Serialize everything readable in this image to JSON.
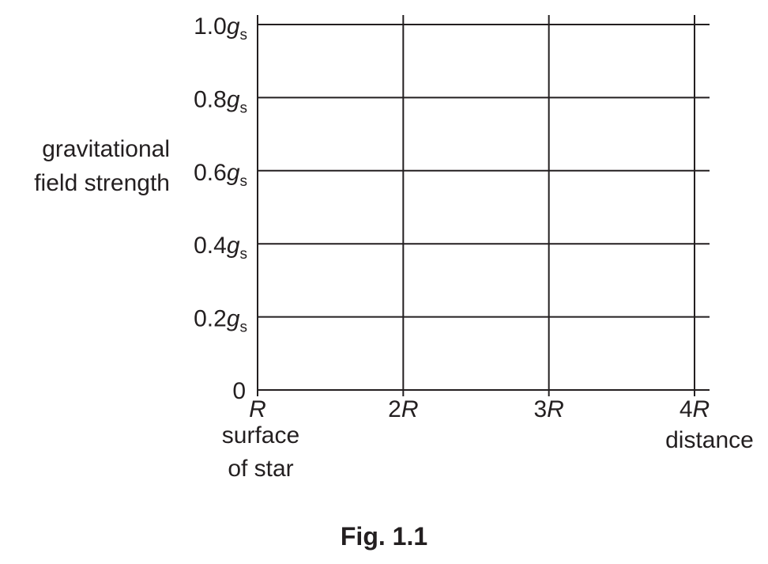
{
  "chart_data": {
    "type": "line",
    "title": "",
    "ylabel": [
      "gravitational",
      "field strength"
    ],
    "xlabel": "distance",
    "x_categories": [
      "R",
      "2R",
      "3R",
      "4R"
    ],
    "x_tick_parts": [
      {
        "num": "",
        "sym": "R"
      },
      {
        "num": "2",
        "sym": "R"
      },
      {
        "num": "3",
        "sym": "R"
      },
      {
        "num": "4",
        "sym": "R"
      }
    ],
    "x_sublabel": [
      "surface",
      "of star"
    ],
    "ylim": [
      0,
      1.0
    ],
    "y_ticks": [
      {
        "value": 0,
        "label": "0",
        "unit": ""
      },
      {
        "value": 0.2,
        "label": "0.2",
        "unit": "g",
        "sub": "s"
      },
      {
        "value": 0.4,
        "label": "0.4",
        "unit": "g",
        "sub": "s"
      },
      {
        "value": 0.6,
        "label": "0.6",
        "unit": "g",
        "sub": "s"
      },
      {
        "value": 0.8,
        "label": "0.8",
        "unit": "g",
        "sub": "s"
      },
      {
        "value": 1.0,
        "label": "1.0",
        "unit": "g",
        "sub": "s"
      }
    ],
    "grid": true,
    "series": []
  },
  "caption": "Fig. 1.1"
}
